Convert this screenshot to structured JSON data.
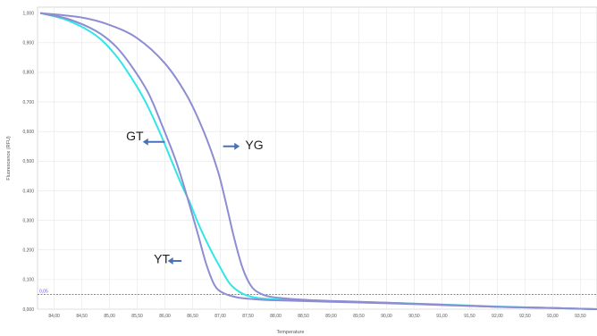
{
  "chart_data": {
    "type": "line",
    "xlabel": "Temperature",
    "ylabel": "Fluorescence (RFU)",
    "xlim": [
      83.7,
      93.8
    ],
    "ylim": [
      0,
      1.02
    ],
    "x_ticks": [
      "84,00",
      "84,50",
      "85,00",
      "85,50",
      "86,00",
      "86,50",
      "87,00",
      "87,50",
      "88,00",
      "88,50",
      "89,00",
      "89,50",
      "90,00",
      "90,50",
      "91,00",
      "91,50",
      "92,00",
      "92,50",
      "93,00",
      "93,50"
    ],
    "x_tick_values": [
      84.0,
      84.5,
      85.0,
      85.5,
      86.0,
      86.5,
      87.0,
      87.5,
      88.0,
      88.5,
      89.0,
      89.5,
      90.0,
      90.5,
      91.0,
      91.5,
      92.0,
      92.5,
      93.0,
      93.5
    ],
    "y_ticks": [
      "0,000",
      "0,100",
      "0,200",
      "0,300",
      "0,400",
      "0,500",
      "0,600",
      "0,700",
      "0,800",
      "0,900",
      "1,000"
    ],
    "y_tick_values": [
      0,
      0.1,
      0.2,
      0.3,
      0.4,
      0.5,
      0.6,
      0.7,
      0.8,
      0.9,
      1.0
    ],
    "threshold": {
      "value": 0.05,
      "label": "0,05",
      "color": "#6b6bdc"
    },
    "grid": true,
    "series": [
      {
        "color": "#33e6e6",
        "x": [
          83.75,
          84.25,
          84.75,
          85.1,
          85.4,
          85.65,
          85.9,
          86.1,
          86.3,
          86.45,
          86.6,
          86.8,
          87.0,
          87.2,
          87.5,
          88.0,
          89.0,
          90.0,
          91.0,
          92.0,
          93.0,
          93.8
        ],
        "y": [
          1.0,
          0.975,
          0.925,
          0.86,
          0.78,
          0.7,
          0.6,
          0.51,
          0.42,
          0.36,
          0.29,
          0.21,
          0.14,
          0.08,
          0.045,
          0.033,
          0.027,
          0.022,
          0.016,
          0.009,
          0.004,
          0.0
        ]
      },
      {
        "color": "#8d8dd2",
        "x": [
          83.75,
          84.25,
          84.75,
          85.1,
          85.4,
          85.7,
          85.95,
          86.2,
          86.4,
          86.6,
          86.75,
          86.9,
          87.05,
          87.3,
          87.6,
          88.0,
          89.0,
          90.0,
          91.0,
          92.0,
          93.0,
          93.8
        ],
        "y": [
          1.0,
          0.98,
          0.94,
          0.89,
          0.82,
          0.73,
          0.62,
          0.5,
          0.38,
          0.25,
          0.15,
          0.08,
          0.055,
          0.04,
          0.034,
          0.03,
          0.025,
          0.02,
          0.014,
          0.008,
          0.004,
          0.0
        ]
      },
      {
        "color": "#8d8dd2",
        "x": [
          83.75,
          84.5,
          85.0,
          85.5,
          86.0,
          86.4,
          86.7,
          86.95,
          87.1,
          87.25,
          87.4,
          87.55,
          87.7,
          87.9,
          88.2,
          88.6,
          89.0,
          90.0,
          91.0,
          92.0,
          93.0,
          93.8
        ],
        "y": [
          1.0,
          0.985,
          0.96,
          0.915,
          0.83,
          0.72,
          0.6,
          0.47,
          0.36,
          0.24,
          0.14,
          0.08,
          0.055,
          0.042,
          0.036,
          0.031,
          0.028,
          0.022,
          0.015,
          0.008,
          0.004,
          0.0
        ]
      }
    ],
    "annotations": [
      {
        "text": "GT",
        "x": 85.3,
        "y": 0.57,
        "arrow_to": 85.6,
        "arrow_from": 86.0,
        "arrow_y": 0.565
      },
      {
        "text": "YG",
        "x": 87.45,
        "y": 0.54,
        "arrow_from": 87.05,
        "arrow_to": 87.35,
        "arrow_y": 0.55
      },
      {
        "text": "YT",
        "x": 85.8,
        "y": 0.155,
        "arrow_from": 86.3,
        "arrow_to": 86.05,
        "arrow_y": 0.163
      }
    ]
  }
}
